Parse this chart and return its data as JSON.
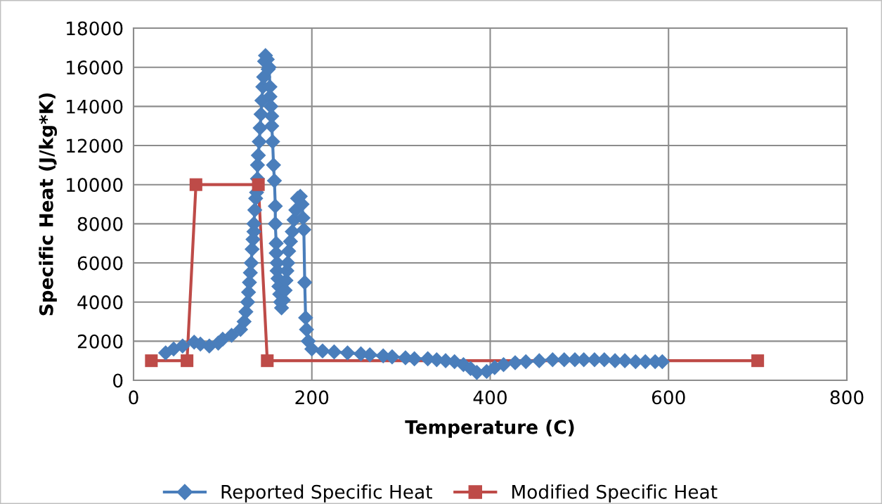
{
  "chart_data": {
    "type": "line",
    "xlabel": "Temperature (C)",
    "ylabel": "Specific Heat (J/kg*K)",
    "xlim": [
      0,
      800
    ],
    "xticks": [
      0,
      200,
      400,
      600,
      800
    ],
    "ylim": [
      0,
      18000
    ],
    "yticks": [
      0,
      2000,
      4000,
      6000,
      8000,
      10000,
      12000,
      14000,
      16000,
      18000
    ],
    "grid": true,
    "legend": "bottom",
    "line_style": "solid",
    "series": [
      {
        "name": "Reported Specific Heat",
        "color": "#4a7ebb",
        "marker": "diamond",
        "x": [
          36,
          45,
          55,
          68,
          75,
          85,
          95,
          100,
          110,
          120,
          124,
          126,
          128,
          129,
          130,
          131,
          132,
          133,
          134,
          135,
          135,
          136,
          137,
          138,
          139,
          139,
          140,
          141,
          142,
          143,
          144,
          145,
          146,
          147,
          148,
          150,
          151,
          152,
          153,
          153,
          154,
          155,
          155,
          156,
          157,
          158,
          159,
          159,
          160,
          160,
          161,
          161,
          162,
          163,
          164,
          165,
          166,
          168,
          170,
          171,
          172,
          173,
          174,
          176,
          178,
          180,
          182,
          184,
          187,
          189,
          190,
          191,
          192,
          193,
          194,
          196,
          200,
          212,
          225,
          240,
          255,
          265,
          280,
          290,
          305,
          315,
          330,
          340,
          350,
          360,
          370,
          378,
          385,
          396,
          405,
          415,
          428,
          440,
          455,
          470,
          483,
          495,
          505,
          517,
          528,
          540,
          551,
          563,
          574,
          585,
          593
        ],
        "values": [
          1400,
          1600,
          1750,
          1950,
          1850,
          1750,
          1900,
          2100,
          2300,
          2600,
          3000,
          3500,
          4000,
          4500,
          5000,
          5500,
          6000,
          6700,
          7200,
          7600,
          8000,
          8700,
          9300,
          9600,
          10300,
          11000,
          11500,
          12200,
          12900,
          13600,
          14300,
          15000,
          15500,
          16300,
          16600,
          16400,
          15900,
          16000,
          15000,
          14500,
          14000,
          13500,
          13000,
          12200,
          11000,
          10200,
          8900,
          8000,
          7000,
          6500,
          6000,
          5600,
          5200,
          4800,
          4400,
          4000,
          3700,
          4100,
          4600,
          5100,
          5600,
          6000,
          6600,
          7100,
          7600,
          8200,
          8700,
          9300,
          9400,
          9000,
          8300,
          7700,
          5000,
          3200,
          2600,
          2000,
          1600,
          1500,
          1450,
          1400,
          1350,
          1300,
          1250,
          1200,
          1150,
          1100,
          1100,
          1050,
          1000,
          950,
          800,
          600,
          400,
          450,
          650,
          800,
          900,
          950,
          1000,
          1050,
          1050,
          1050,
          1050,
          1050,
          1050,
          1000,
          1000,
          950,
          950,
          950,
          950
        ]
      },
      {
        "name": "Modified Specific Heat",
        "color": "#be4b48",
        "marker": "square",
        "x": [
          20,
          60,
          70,
          140,
          150,
          700
        ],
        "values": [
          1000,
          1000,
          10000,
          10000,
          1000,
          1000
        ]
      }
    ]
  }
}
